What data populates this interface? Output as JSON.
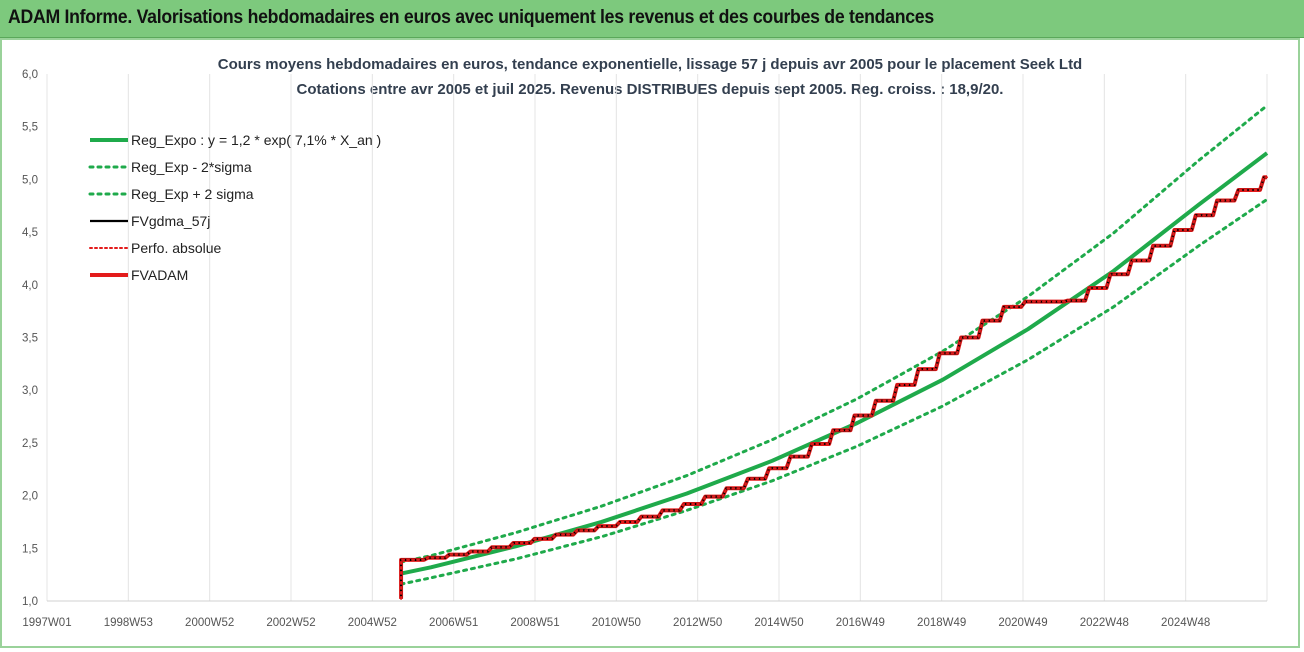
{
  "banner": {
    "title": "ADAM Informe. Valorisations hebdomadaires en euros avec uniquement les revenus et des courbes de tendances"
  },
  "chart_data": {
    "type": "line",
    "title": "Cours moyens hebdomadaires en euros, tendance exponentielle, lissage 57 j depuis avr 2005 pour le placement Seek Ltd",
    "subtitle": "Cotations entre avr 2005 et juil 2025. Revenus DISTRIBUES depuis sept 2005. Reg. croiss. : 18,9/20.",
    "xlabel": "",
    "ylabel": "",
    "x_ticks": [
      "1997W01",
      "1998W53",
      "2000W52",
      "2002W52",
      "2004W52",
      "2006W51",
      "2008W51",
      "2010W50",
      "2012W50",
      "2014W50",
      "2016W49",
      "2018W49",
      "2020W49",
      "2022W48",
      "2024W48"
    ],
    "y_ticks": [
      "1,0",
      "1,5",
      "2,0",
      "2,5",
      "3,0",
      "3,5",
      "4,0",
      "4,5",
      "5,0",
      "5,5",
      "6,0"
    ],
    "ylim": [
      1.0,
      6.0
    ],
    "xlim_years": [
      1997.0,
      2025.6
    ],
    "grid": {
      "vertical": true,
      "horizontal": false
    },
    "legend_position": "top-left",
    "series": [
      {
        "name": "Reg_Expo : y = 1,2 * exp( 7,1% *  X_an )",
        "style": "solid",
        "color": "#1faa4b",
        "x": [
          2005.3,
          2006.0,
          2008.0,
          2010.0,
          2012.0,
          2014.0,
          2016.0,
          2018.0,
          2020.0,
          2022.0,
          2024.0,
          2025.6
        ],
        "y": [
          1.26,
          1.32,
          1.52,
          1.75,
          2.02,
          2.33,
          2.69,
          3.1,
          3.58,
          4.13,
          4.76,
          5.25
        ]
      },
      {
        "name": "Reg_Exp - 2*sigma",
        "style": "dotted",
        "color": "#1faa4b",
        "x": [
          2005.3,
          2006.0,
          2008.0,
          2010.0,
          2012.0,
          2014.0,
          2016.0,
          2018.0,
          2020.0,
          2022.0,
          2024.0,
          2025.6
        ],
        "y": [
          1.16,
          1.22,
          1.4,
          1.61,
          1.86,
          2.14,
          2.47,
          2.85,
          3.29,
          3.79,
          4.37,
          4.81
        ]
      },
      {
        "name": "Reg_Exp + 2 sigma",
        "style": "dotted",
        "color": "#1faa4b",
        "x": [
          2005.3,
          2006.0,
          2008.0,
          2010.0,
          2012.0,
          2014.0,
          2016.0,
          2018.0,
          2020.0,
          2022.0,
          2024.0,
          2025.6
        ],
        "y": [
          1.37,
          1.43,
          1.65,
          1.9,
          2.19,
          2.53,
          2.92,
          3.37,
          3.89,
          4.49,
          5.18,
          5.7
        ]
      },
      {
        "name": "FVgdma_57j",
        "style": "solid",
        "color": "#000000",
        "x": [
          2005.3,
          2005.3,
          2006.0,
          2006.5,
          2007.0,
          2007.5,
          2008.0,
          2008.5,
          2009.0,
          2009.5,
          2010.0,
          2010.5,
          2011.0,
          2011.5,
          2012.0,
          2012.5,
          2013.0,
          2013.5,
          2014.0,
          2014.5,
          2015.0,
          2015.5,
          2016.0,
          2016.5,
          2017.0,
          2017.5,
          2018.0,
          2018.5,
          2019.0,
          2019.5,
          2020.0,
          2020.5,
          2021.0,
          2021.5,
          2022.0,
          2022.5,
          2023.0,
          2023.5,
          2024.0,
          2024.5,
          2025.0,
          2025.6
        ],
        "y": [
          1.02,
          1.39,
          1.41,
          1.44,
          1.47,
          1.51,
          1.55,
          1.59,
          1.63,
          1.67,
          1.71,
          1.75,
          1.8,
          1.86,
          1.92,
          1.99,
          2.07,
          2.16,
          2.26,
          2.37,
          2.49,
          2.62,
          2.76,
          2.9,
          3.05,
          3.2,
          3.35,
          3.5,
          3.66,
          3.79,
          3.84,
          3.84,
          3.85,
          3.97,
          4.1,
          4.23,
          4.37,
          4.52,
          4.66,
          4.8,
          4.9,
          5.02
        ]
      },
      {
        "name": "Perfo. absolue",
        "style": "dotted",
        "color": "#e31b1b",
        "x": [
          2005.3,
          2005.3,
          2006.0,
          2006.5,
          2007.0,
          2007.5,
          2008.0,
          2008.5,
          2009.0,
          2009.5,
          2010.0,
          2010.5,
          2011.0,
          2011.5,
          2012.0,
          2012.5,
          2013.0,
          2013.5,
          2014.0,
          2014.5,
          2015.0,
          2015.5,
          2016.0,
          2016.5,
          2017.0,
          2017.5,
          2018.0,
          2018.5,
          2019.0,
          2019.5,
          2020.0,
          2020.5,
          2021.0,
          2021.5,
          2022.0,
          2022.5,
          2023.0,
          2023.5,
          2024.0,
          2024.5,
          2025.0,
          2025.6
        ],
        "y": [
          1.02,
          1.39,
          1.41,
          1.44,
          1.47,
          1.51,
          1.55,
          1.59,
          1.63,
          1.67,
          1.71,
          1.75,
          1.8,
          1.86,
          1.92,
          1.99,
          2.07,
          2.16,
          2.26,
          2.37,
          2.49,
          2.62,
          2.76,
          2.9,
          3.05,
          3.2,
          3.35,
          3.5,
          3.66,
          3.79,
          3.84,
          3.84,
          3.85,
          3.97,
          4.1,
          4.23,
          4.37,
          4.52,
          4.66,
          4.8,
          4.9,
          5.02
        ]
      },
      {
        "name": "FVADAM",
        "style": "solid-steps",
        "color": "#e31b1b",
        "x": [
          2005.3,
          2005.3,
          2006.0,
          2006.5,
          2007.0,
          2007.5,
          2008.0,
          2008.5,
          2009.0,
          2009.5,
          2010.0,
          2010.5,
          2011.0,
          2011.5,
          2012.0,
          2012.5,
          2013.0,
          2013.5,
          2014.0,
          2014.5,
          2015.0,
          2015.5,
          2016.0,
          2016.5,
          2017.0,
          2017.5,
          2018.0,
          2018.5,
          2019.0,
          2019.5,
          2020.0,
          2020.5,
          2021.0,
          2021.5,
          2022.0,
          2022.5,
          2023.0,
          2023.5,
          2024.0,
          2024.5,
          2025.0,
          2025.6
        ],
        "y": [
          1.02,
          1.39,
          1.41,
          1.44,
          1.47,
          1.51,
          1.55,
          1.59,
          1.63,
          1.67,
          1.71,
          1.75,
          1.8,
          1.86,
          1.92,
          1.99,
          2.07,
          2.16,
          2.26,
          2.37,
          2.49,
          2.62,
          2.76,
          2.9,
          3.05,
          3.2,
          3.35,
          3.5,
          3.66,
          3.79,
          3.84,
          3.84,
          3.85,
          3.97,
          4.1,
          4.23,
          4.37,
          4.52,
          4.66,
          4.8,
          4.9,
          5.02
        ]
      }
    ]
  }
}
